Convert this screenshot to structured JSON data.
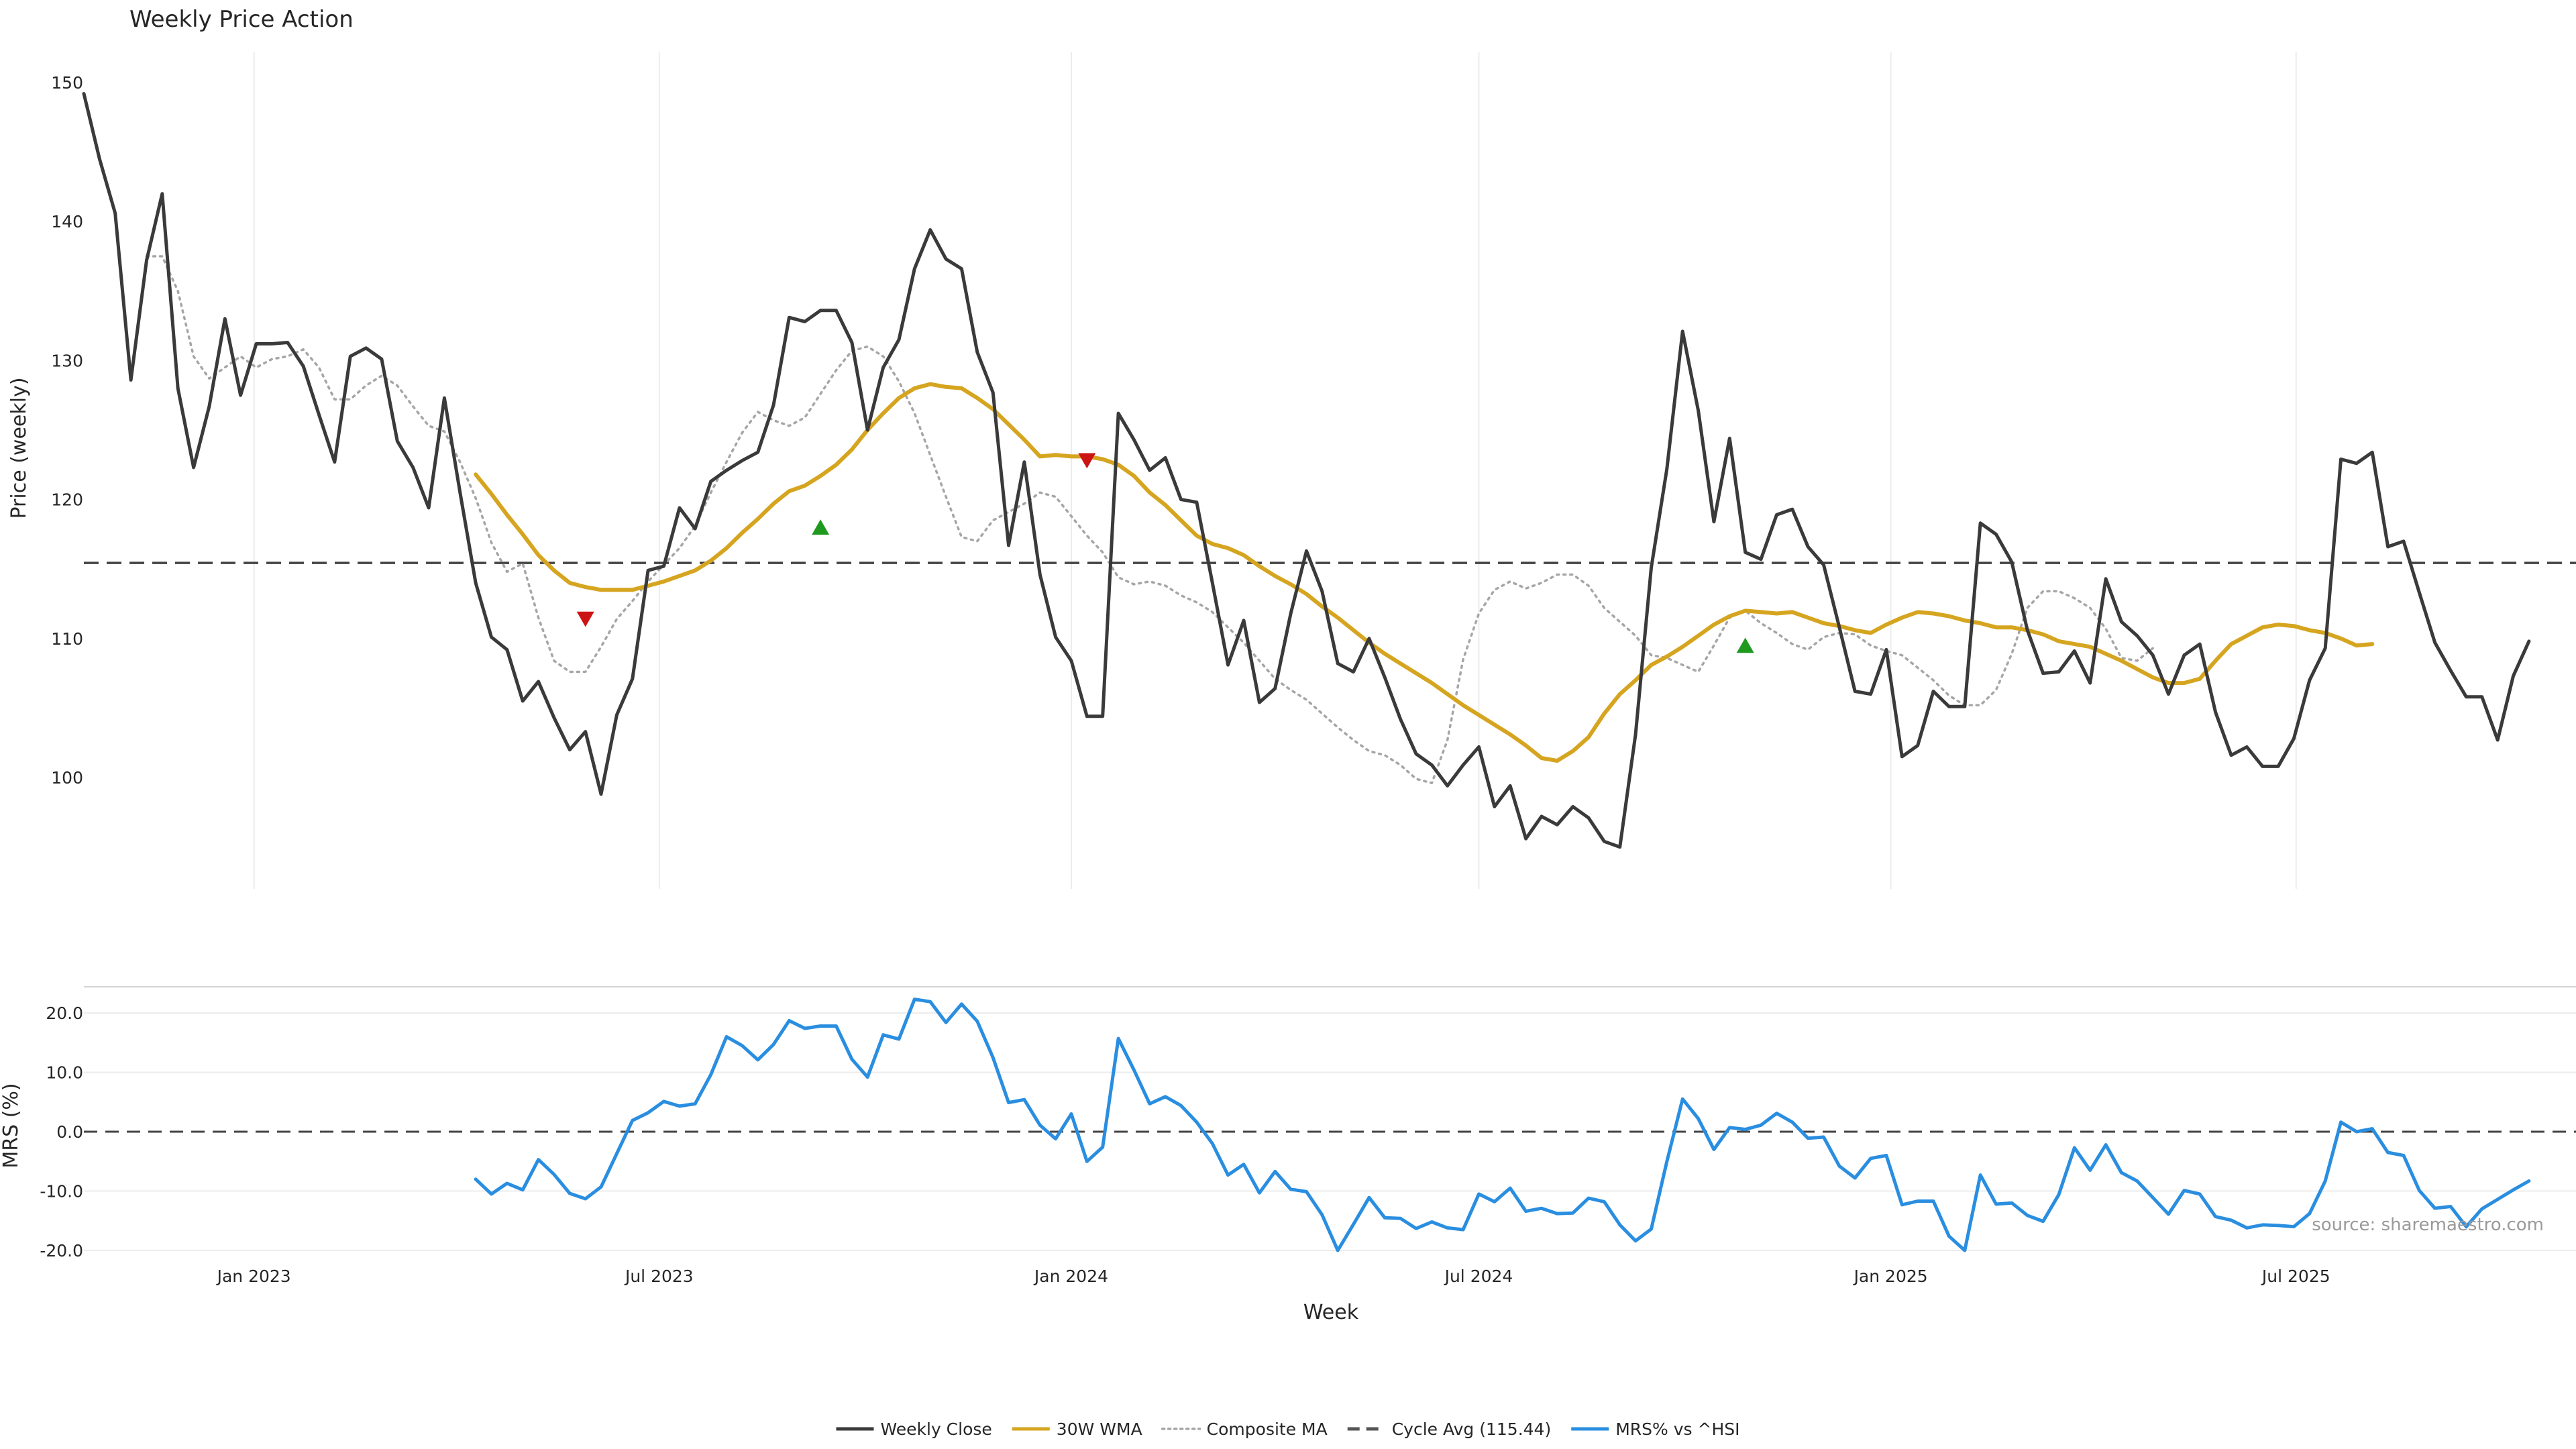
{
  "chart_data": [
    {
      "type": "line",
      "title": "Weekly Price Action",
      "xlabel": "",
      "ylabel": "Price (weekly)",
      "xlim": [
        "2022-10-17",
        "2025-11-03"
      ],
      "ylim": [
        91.8,
        152
      ],
      "yticks": [
        100,
        110,
        120,
        130,
        140,
        150
      ],
      "xticks": [
        {
          "x": "2023-01-01",
          "label": "Jan 2023"
        },
        {
          "x": "2023-07-01",
          "label": "Jul 2023"
        },
        {
          "x": "2024-01-01",
          "label": "Jan 2024"
        },
        {
          "x": "2024-07-01",
          "label": "Jul 2024"
        },
        {
          "x": "2025-01-01",
          "label": "Jan 2025"
        },
        {
          "x": "2025-07-01",
          "label": "Jul 2025"
        }
      ],
      "grid": "x",
      "hlines": [
        {
          "name": "Cycle Avg (115.44)",
          "y": 115.44
        }
      ],
      "series": [
        {
          "name": "Weekly Close",
          "color": "#3a3a3a",
          "style": "solid",
          "x_start": "2022-10-17",
          "step_days": 7,
          "values": [
            149.2,
            144.5,
            140.6,
            128.6,
            137.2,
            142.0,
            128.0,
            122.3,
            126.7,
            133.0,
            127.5,
            131.2,
            131.2,
            131.3,
            129.6,
            126.1,
            122.7,
            130.3,
            130.9,
            130.1,
            124.2,
            122.3,
            119.4,
            127.3,
            120.5,
            114.0,
            110.1,
            109.2,
            105.5,
            106.9,
            104.3,
            102.0,
            103.3,
            98.8,
            104.5,
            107.1,
            114.9,
            115.2,
            119.4,
            117.9,
            121.3,
            122.1,
            122.8,
            123.4,
            126.8,
            133.1,
            132.8,
            133.6,
            133.6,
            131.3,
            125.0,
            129.5,
            131.5,
            136.6,
            139.4,
            137.3,
            136.6,
            130.6,
            127.7,
            116.7,
            122.7,
            114.6,
            110.1,
            108.4,
            104.4,
            104.4,
            126.2,
            124.3,
            122.1,
            123.0,
            120.0,
            119.8,
            114.0,
            108.1,
            111.3,
            105.4,
            106.4,
            111.8,
            116.3,
            113.4,
            108.2,
            107.6,
            110.0,
            107.2,
            104.2,
            101.7,
            100.9,
            99.4,
            100.9,
            102.2,
            97.9,
            99.4,
            95.6,
            97.2,
            96.6,
            97.9,
            97.1,
            95.4,
            95.0,
            103.1,
            115.1,
            122.2,
            132.1,
            126.4,
            118.4,
            124.4,
            116.2,
            115.7,
            118.9,
            119.3,
            116.6,
            115.3,
            110.8,
            106.2,
            106.0,
            109.2,
            101.5,
            102.3,
            106.2,
            105.1,
            105.1,
            118.3,
            117.5,
            115.5,
            110.6,
            107.5,
            107.6,
            109.1,
            106.8,
            114.3,
            111.2,
            110.2,
            108.8,
            106.0,
            108.8,
            109.6,
            104.7,
            101.6,
            102.2,
            100.8,
            100.8,
            102.8,
            107.0,
            109.3,
            122.9,
            122.6,
            123.4,
            116.6,
            117.0,
            113.3,
            109.7,
            107.7,
            105.8,
            105.8,
            102.7,
            107.3,
            109.8
          ]
        },
        {
          "name": "30W WMA",
          "color": "#d6a520",
          "style": "solid",
          "x_start": "2023-04-10",
          "step_days": 7,
          "values": [
            121.8,
            120.4,
            118.9,
            117.5,
            116.0,
            114.9,
            114.0,
            113.7,
            113.5,
            113.5,
            113.5,
            113.8,
            114.1,
            114.5,
            114.9,
            115.6,
            116.5,
            117.6,
            118.6,
            119.7,
            120.6,
            121.0,
            121.7,
            122.5,
            123.6,
            125.0,
            126.2,
            127.3,
            128.0,
            128.3,
            128.1,
            128.0,
            127.3,
            126.5,
            125.4,
            124.3,
            123.1,
            123.2,
            123.1,
            123.1,
            122.9,
            122.5,
            121.7,
            120.5,
            119.6,
            118.5,
            117.4,
            116.8,
            116.5,
            116.0,
            115.2,
            114.5,
            113.9,
            113.2,
            112.3,
            111.5,
            110.6,
            109.7,
            108.9,
            108.2,
            107.5,
            106.8,
            106.0,
            105.2,
            104.5,
            103.8,
            103.1,
            102.3,
            101.4,
            101.2,
            101.9,
            102.9,
            104.6,
            106.0,
            107.0,
            108.1,
            108.7,
            109.4,
            110.2,
            111.0,
            111.6,
            112.0,
            111.9,
            111.8,
            111.9,
            111.5,
            111.1,
            110.9,
            110.6,
            110.4,
            111.0,
            111.5,
            111.9,
            111.8,
            111.6,
            111.3,
            111.1,
            110.8,
            110.8,
            110.6,
            110.3,
            109.8,
            109.6,
            109.4,
            108.9,
            108.4,
            107.8,
            107.2,
            106.8,
            106.8,
            107.1,
            108.4,
            109.6,
            110.2,
            110.8,
            111.0,
            110.9,
            110.6,
            110.4,
            110.0,
            109.5,
            109.6
          ]
        },
        {
          "name": "Composite MA",
          "color": "#a6a6a6",
          "style": "dotted",
          "x_start": "2022-11-14",
          "step_days": 7,
          "values": [
            137.5,
            137.5,
            135.0,
            130.3,
            128.7,
            129.5,
            130.3,
            129.5,
            130.1,
            130.3,
            130.8,
            129.5,
            127.2,
            127.2,
            128.2,
            128.9,
            128.2,
            126.7,
            125.3,
            124.9,
            122.7,
            120.1,
            116.9,
            114.8,
            115.4,
            111.5,
            108.4,
            107.6,
            107.6,
            109.4,
            111.4,
            112.7,
            114.1,
            115.3,
            116.5,
            118.1,
            120.5,
            122.7,
            124.8,
            126.3,
            125.7,
            125.3,
            125.9,
            127.6,
            129.3,
            130.7,
            131.0,
            130.3,
            128.5,
            126.2,
            123.2,
            120.2,
            117.3,
            117.0,
            118.5,
            119.1,
            119.7,
            120.5,
            120.2,
            118.8,
            117.4,
            116.2,
            114.4,
            113.9,
            114.1,
            113.8,
            113.1,
            112.6,
            111.9,
            110.8,
            109.7,
            108.4,
            107.1,
            106.3,
            105.6,
            104.6,
            103.6,
            102.7,
            101.9,
            101.6,
            100.9,
            99.9,
            99.6,
            102.7,
            108.5,
            111.8,
            113.5,
            114.1,
            113.6,
            114.0,
            114.6,
            114.6,
            113.8,
            112.2,
            111.2,
            110.2,
            108.8,
            108.6,
            108.1,
            107.6,
            109.5,
            111.5,
            112.0,
            111.1,
            110.4,
            109.6,
            109.2,
            110.1,
            110.4,
            110.3,
            109.5,
            109.1,
            108.8,
            107.9,
            107.0,
            105.9,
            105.2,
            105.2,
            106.3,
            108.9,
            112.2,
            113.4,
            113.4,
            112.9,
            112.2,
            110.7,
            108.6,
            108.4,
            109.3
          ]
        }
      ],
      "markers": [
        {
          "type": "sell",
          "symbol": "▼",
          "color": "#cc1414",
          "x": "2023-05-29",
          "y": 111.4
        },
        {
          "type": "buy",
          "symbol": "▲",
          "color": "#1f9a1f",
          "x": "2023-09-11",
          "y": 118.0
        },
        {
          "type": "sell",
          "symbol": "▼",
          "color": "#cc1414",
          "x": "2024-01-08",
          "y": 122.8
        },
        {
          "type": "buy",
          "symbol": "▲",
          "color": "#1f9a1f",
          "x": "2024-10-28",
          "y": 109.5
        }
      ]
    },
    {
      "type": "line",
      "title": "",
      "xlabel": "Week",
      "ylabel": "MRS (%)",
      "xlim": [
        "2022-10-17",
        "2025-11-03"
      ],
      "ylim": [
        -20.5,
        24.5
      ],
      "yticks": [
        20.0,
        10.0,
        0.0,
        -10.0,
        -20.0
      ],
      "ytick_labels": [
        "20.0",
        "10.0",
        "0.0",
        "-10.0",
        "-20.0"
      ],
      "grid": "y",
      "hlines": [
        {
          "y": 0.0
        }
      ],
      "series": [
        {
          "name": "MRS% vs ^HSI",
          "color": "#2a8ee0",
          "style": "solid",
          "x_start": "2023-04-10",
          "step_days": 7,
          "values": [
            -8.0,
            -10.5,
            -8.7,
            -9.8,
            -4.7,
            -7.2,
            -10.4,
            -11.3,
            -9.3,
            -3.7,
            1.9,
            3.2,
            5.1,
            4.3,
            4.7,
            9.6,
            16.0,
            14.5,
            12.1,
            14.7,
            18.7,
            17.4,
            17.8,
            17.8,
            12.2,
            9.2,
            16.3,
            15.6,
            22.3,
            21.9,
            18.4,
            21.5,
            18.6,
            12.5,
            4.9,
            5.4,
            1.1,
            -1.2,
            3.0,
            -5.0,
            -2.6,
            15.7,
            10.4,
            4.7,
            5.9,
            4.4,
            1.6,
            -2.0,
            -7.3,
            -5.5,
            -10.3,
            -6.7,
            -9.7,
            -10.1,
            -14.0,
            -20.0,
            -15.6,
            -11.1,
            -14.5,
            -14.6,
            -16.3,
            -15.2,
            -16.2,
            -16.5,
            -10.5,
            -11.8,
            -9.5,
            -13.4,
            -12.9,
            -13.8,
            -13.7,
            -11.2,
            -11.8,
            -15.7,
            -18.4,
            -16.4,
            -5.0,
            5.5,
            2.2,
            -3.0,
            0.7,
            0.4,
            1.1,
            3.1,
            1.6,
            -1.1,
            -0.9,
            -5.8,
            -7.8,
            -4.5,
            -4.0,
            -12.3,
            -11.7,
            -11.7,
            -17.6,
            -20.0,
            -7.3,
            -12.2,
            -12.0,
            -14.1,
            -15.1,
            -10.6,
            -2.7,
            -6.5,
            -2.2,
            -6.9,
            -8.3,
            -11.1,
            -13.9,
            -9.9,
            -10.5,
            -14.3,
            -14.9,
            -16.2,
            -15.7,
            -15.8,
            -16.0,
            -13.8,
            -8.3,
            1.6,
            0.0,
            0.5,
            -3.5,
            -4.0,
            -9.9,
            -12.9,
            -12.6,
            -16.0,
            -13.0,
            -11.4,
            -9.8,
            -8.3
          ]
        }
      ]
    }
  ],
  "legend": {
    "placement": "bottom-center",
    "items": [
      {
        "label": "Weekly Close",
        "color": "#3a3a3a",
        "style": "solid"
      },
      {
        "label": "30W WMA",
        "color": "#d6a520",
        "style": "solid"
      },
      {
        "label": "Composite MA",
        "color": "#a6a6a6",
        "style": "dotted"
      },
      {
        "label": "Cycle Avg (115.44)",
        "color": "#555555",
        "style": "dashed"
      },
      {
        "label": "MRS% vs ^HSI",
        "color": "#2a8ee0",
        "style": "solid"
      }
    ]
  },
  "source_text": "source: sharemaestro.com"
}
